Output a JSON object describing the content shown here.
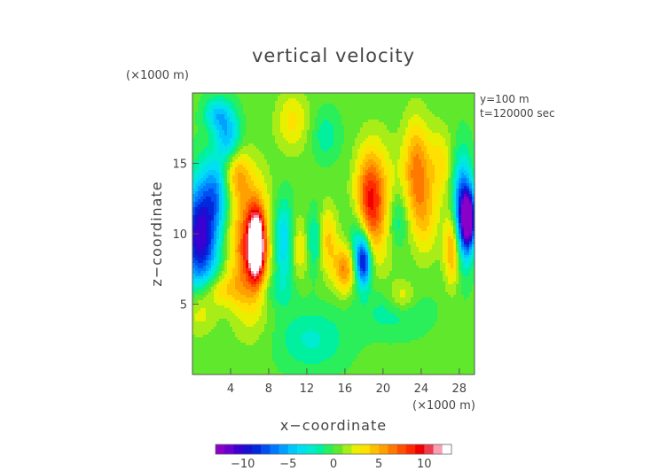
{
  "chart_data": {
    "type": "heatmap",
    "title": "vertical velocity",
    "xlabel": "x−coordinate",
    "ylabel": "z−coordinate",
    "x_unit": "(×1000 m)",
    "y_unit": "(×1000 m)",
    "xlim": [
      0,
      29.6
    ],
    "ylim": [
      0,
      20
    ],
    "x_ticks": [
      4,
      8,
      12,
      16,
      20,
      24,
      28
    ],
    "y_ticks": [
      5,
      10,
      15
    ],
    "annotations": [
      "y=100 m",
      "t=120000 sec"
    ],
    "colorbar": {
      "min": -13,
      "max": 13,
      "tick_values": [
        -10,
        -5,
        0,
        5,
        10
      ],
      "tick_labels": [
        "−10",
        "−5",
        "0",
        "5",
        "10"
      ]
    },
    "field": {
      "background": 0.3,
      "features": [
        {
          "x": 0.8,
          "z": 9.8,
          "value": -11,
          "sx": 1.3,
          "sz": 2.6
        },
        {
          "x": 2.5,
          "z": 13.0,
          "value": -5,
          "sx": 1.0,
          "sz": 1.8
        },
        {
          "x": 3.7,
          "z": 17.0,
          "value": -5,
          "sx": 0.9,
          "sz": 1.3
        },
        {
          "x": 2.5,
          "z": 18.5,
          "value": -4,
          "sx": 0.9,
          "sz": 0.8
        },
        {
          "x": 6.7,
          "z": 9.2,
          "value": 13,
          "sx": 0.55,
          "sz": 1.6
        },
        {
          "x": 6.1,
          "z": 9.0,
          "value": 8,
          "sx": 1.5,
          "sz": 3.2
        },
        {
          "x": 4.6,
          "z": 14.2,
          "value": 4,
          "sx": 1.0,
          "sz": 1.2
        },
        {
          "x": 9.5,
          "z": 9.5,
          "value": -5,
          "sx": 0.8,
          "sz": 2.0
        },
        {
          "x": 11.2,
          "z": 9.0,
          "value": 3,
          "sx": 0.7,
          "sz": 1.6
        },
        {
          "x": 12.8,
          "z": 9.5,
          "value": -3,
          "sx": 0.6,
          "sz": 1.5
        },
        {
          "x": 14.2,
          "z": 9.5,
          "value": 4,
          "sx": 0.7,
          "sz": 1.7
        },
        {
          "x": 16.0,
          "z": 7.5,
          "value": 6,
          "sx": 0.8,
          "sz": 1.2
        },
        {
          "x": 17.4,
          "z": 9.2,
          "value": -4,
          "sx": 0.7,
          "sz": 1.8
        },
        {
          "x": 18.0,
          "z": 8.0,
          "value": -9,
          "sx": 0.55,
          "sz": 1.2
        },
        {
          "x": 18.5,
          "z": 12.5,
          "value": 6,
          "sx": 1.0,
          "sz": 2.3
        },
        {
          "x": 19.5,
          "z": 12.0,
          "value": 4,
          "sx": 1.4,
          "sz": 3.0
        },
        {
          "x": 21.5,
          "z": 11.0,
          "value": -3,
          "sx": 0.8,
          "sz": 1.5
        },
        {
          "x": 23.5,
          "z": 14.5,
          "value": 6,
          "sx": 1.0,
          "sz": 2.5
        },
        {
          "x": 24.5,
          "z": 11.0,
          "value": 3,
          "sx": 1.0,
          "sz": 2.0
        },
        {
          "x": 26.0,
          "z": 15.0,
          "value": 3,
          "sx": 0.9,
          "sz": 1.8
        },
        {
          "x": 27.3,
          "z": 9.0,
          "value": 6,
          "sx": 0.6,
          "sz": 1.8
        },
        {
          "x": 28.3,
          "z": 11.6,
          "value": -9,
          "sx": 0.7,
          "sz": 2.5
        },
        {
          "x": 29.0,
          "z": 11.0,
          "value": -12,
          "sx": 0.5,
          "sz": 1.4
        },
        {
          "x": 12.5,
          "z": 2.5,
          "value": -2.5,
          "sx": 2.5,
          "sz": 1.5
        },
        {
          "x": 8.5,
          "z": 6.0,
          "value": -2,
          "sx": 1.5,
          "sz": 1.0
        },
        {
          "x": 21.0,
          "z": 4.5,
          "value": -2,
          "sx": 2.5,
          "sz": 1.2
        },
        {
          "x": 3.0,
          "z": 6.0,
          "value": 3,
          "sx": 1.5,
          "sz": 0.8
        },
        {
          "x": 10.5,
          "z": 18.0,
          "value": 3,
          "sx": 1.2,
          "sz": 1.5
        },
        {
          "x": 14.0,
          "z": 17.0,
          "value": -2,
          "sx": 1.0,
          "sz": 1.2
        },
        {
          "x": 22.0,
          "z": 5.5,
          "value": 3,
          "sx": 1.0,
          "sz": 0.8
        },
        {
          "x": 0.8,
          "z": 4.5,
          "value": 3,
          "sx": 1.2,
          "sz": 1.2
        }
      ]
    }
  }
}
